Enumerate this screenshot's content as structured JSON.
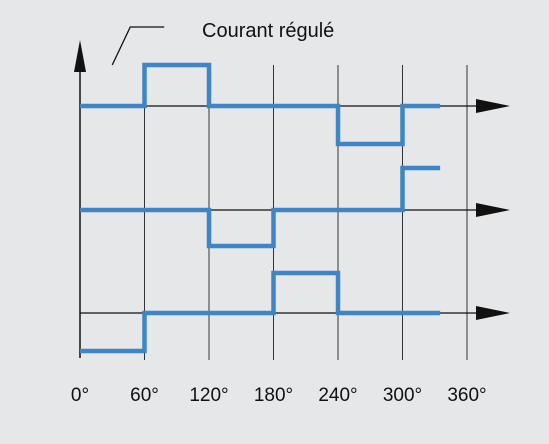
{
  "annotation": {
    "label": "Courant régulé"
  },
  "x_axis": {
    "tick_labels": [
      "0°",
      "60°",
      "120°",
      "180°",
      "240°",
      "300°",
      "360°"
    ],
    "tick_values": [
      0,
      60,
      120,
      180,
      240,
      300,
      360
    ]
  },
  "colors": {
    "background": "#e6e7e8",
    "waveform": "#3d85c6",
    "axis": "#111111",
    "grid": "#333333"
  },
  "waveforms": [
    {
      "levels": [
        0,
        1,
        0,
        0,
        -1,
        0
      ]
    },
    {
      "levels": [
        0,
        0,
        -1,
        0,
        0,
        1
      ]
    },
    {
      "levels": [
        -1,
        0,
        0,
        1,
        0,
        0
      ]
    }
  ]
}
